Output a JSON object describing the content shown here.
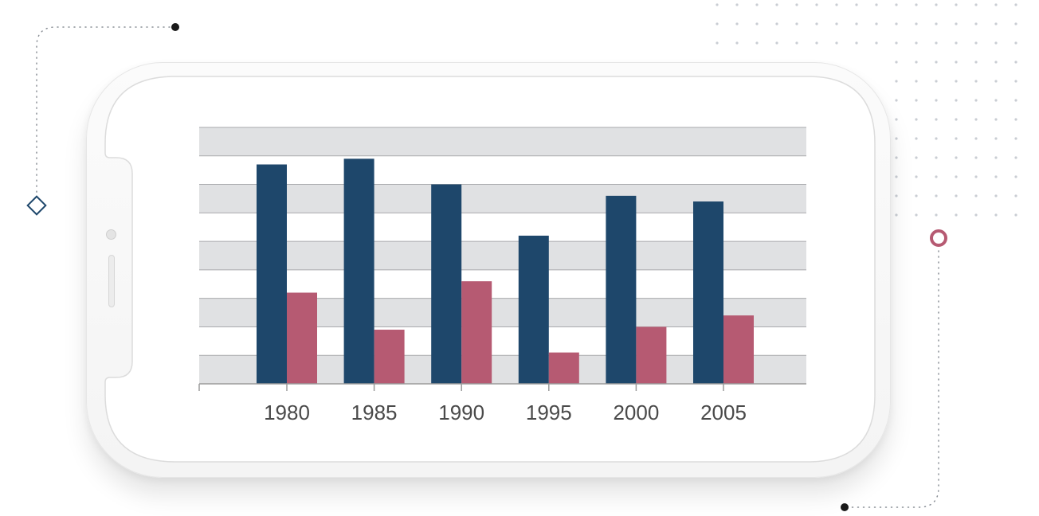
{
  "colors": {
    "series_primary": "#1e476b",
    "series_secondary": "#b65a72",
    "band": "#e0e1e3",
    "grid_line": "#a9aaad",
    "accent_ring": "#b65a72",
    "accent_diamond": "#1e476b"
  },
  "chart_data": {
    "type": "bar",
    "title": "",
    "xlabel": "",
    "ylabel": "",
    "categories": [
      "1980",
      "1985",
      "1990",
      "1995",
      "2000",
      "2005"
    ],
    "series": [
      {
        "values": [
          7.7,
          7.9,
          7.0,
          5.2,
          6.6,
          6.4
        ]
      },
      {
        "values": [
          3.2,
          1.9,
          3.6,
          1.1,
          2.0,
          2.4
        ]
      }
    ],
    "ylim": [
      0,
      9
    ],
    "grid": true
  }
}
